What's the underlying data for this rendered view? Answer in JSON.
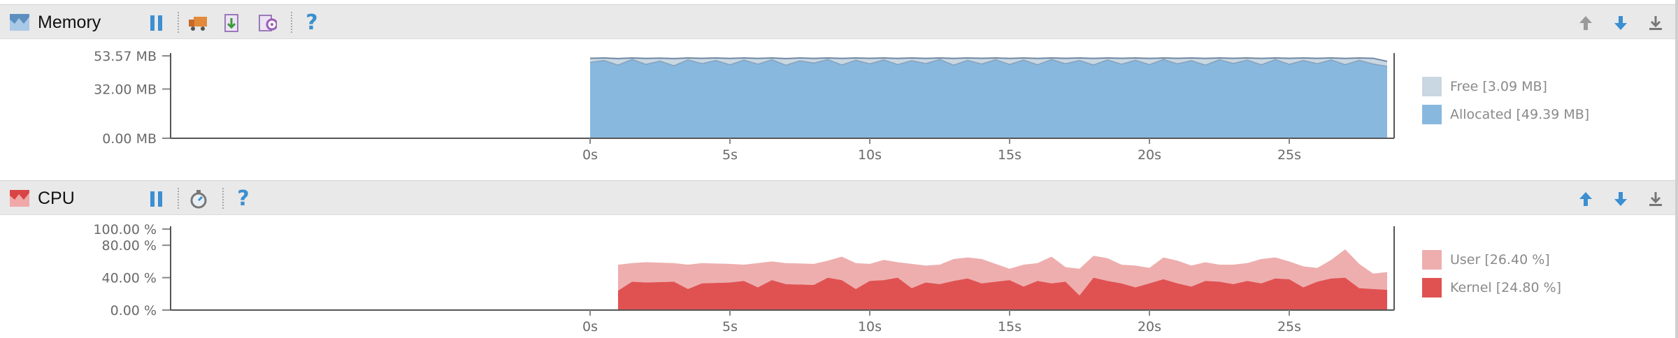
{
  "memory": {
    "title": "Memory",
    "y_ticks": [
      "53.57 MB",
      "32.00 MB",
      "0.00 MB"
    ],
    "x_ticks": [
      "0s",
      "5s",
      "10s",
      "15s",
      "20s",
      "25s"
    ],
    "legend": [
      {
        "label": "Free [3.09 MB]",
        "color": "#c9d7e2"
      },
      {
        "label": "Allocated [49.39 MB]",
        "color": "#89b8de"
      }
    ],
    "colors": {
      "allocated": "#89b8de",
      "free": "#c9d7e2",
      "line": "#6f88a3"
    }
  },
  "cpu": {
    "title": "CPU",
    "y_ticks": [
      "100.00 %",
      "80.00 %",
      "40.00 %",
      "0.00 %"
    ],
    "x_ticks": [
      "0s",
      "5s",
      "10s",
      "15s",
      "20s",
      "25s"
    ],
    "legend": [
      {
        "label": "User [26.40 %]",
        "color": "#eeaeae"
      },
      {
        "label": "Kernel [24.80 %]",
        "color": "#e05252"
      }
    ],
    "colors": {
      "user": "#eeaeae",
      "kernel": "#e05252"
    }
  },
  "icons": {
    "memory_panel": "memory-chart-icon",
    "cpu_panel": "cpu-chart-icon",
    "pause": "pause-icon",
    "gc": "garbage-truck-icon",
    "dump_heap": "dump-heap-icon",
    "allocation_tracking": "allocation-tracking-icon",
    "method_trace": "stopwatch-icon",
    "help": "?",
    "move_up": "arrow-up-icon",
    "move_down": "arrow-down-icon",
    "minimize": "minimize-icon"
  },
  "chart_data": [
    {
      "type": "area",
      "title": "Memory",
      "ylabel": "",
      "xlabel": "",
      "x_unit": "s",
      "ylim": [
        0,
        53.57
      ],
      "xlim": [
        0,
        28.7
      ],
      "series": [
        {
          "name": "Allocated",
          "x": [
            0,
            0.5,
            1,
            1.5,
            2,
            2.5,
            3,
            3.5,
            4,
            4.5,
            5,
            5.5,
            6,
            6.5,
            7,
            7.5,
            8,
            8.5,
            9,
            9.5,
            10,
            10.5,
            11,
            11.5,
            12,
            12.5,
            13,
            13.5,
            14,
            14.5,
            15,
            15.5,
            16,
            16.5,
            17,
            17.5,
            18,
            18.5,
            19,
            19.5,
            20,
            20.5,
            21,
            21.5,
            22,
            22.5,
            23,
            23.5,
            24,
            24.5,
            25,
            25.5,
            26,
            26.5,
            27,
            27.5,
            28,
            28.5
          ],
          "values": [
            49.4,
            50.6,
            47.6,
            51.3,
            48.1,
            50.2,
            47.2,
            51.0,
            48.6,
            50.6,
            47.8,
            50.9,
            48.2,
            51.1,
            47.5,
            50.4,
            48.9,
            51.2,
            47.7,
            50.8,
            48.4,
            51.0,
            47.9,
            50.5,
            48.6,
            51.3,
            47.6,
            50.7,
            48.3,
            51.1,
            48.0,
            50.9,
            47.8,
            51.2,
            48.5,
            50.6,
            47.7,
            51.0,
            48.2,
            50.8,
            47.9,
            51.3,
            48.4,
            50.5,
            47.6,
            51.1,
            48.7,
            50.9,
            47.8,
            51.2,
            48.1,
            50.6,
            48.5,
            51.0,
            47.9,
            50.7,
            48.3,
            46.8
          ]
        },
        {
          "name": "Free",
          "x": [
            0,
            0.5,
            1,
            1.5,
            2,
            2.5,
            3,
            3.5,
            4,
            4.5,
            5,
            5.5,
            6,
            6.5,
            7,
            7.5,
            8,
            8.5,
            9,
            9.5,
            10,
            10.5,
            11,
            11.5,
            12,
            12.5,
            13,
            13.5,
            14,
            14.5,
            15,
            15.5,
            16,
            16.5,
            17,
            17.5,
            18,
            18.5,
            19,
            19.5,
            20,
            20.5,
            21,
            21.5,
            22,
            22.5,
            23,
            23.5,
            24,
            24.5,
            25,
            25.5,
            26,
            26.5,
            27,
            27.5,
            28,
            28.5
          ],
          "values": [
            2.6,
            1.6,
            4.2,
            0.9,
            3.8,
            1.9,
            4.6,
            1.2,
            3.4,
            1.6,
            4.1,
            1.3,
            3.7,
            1.1,
            4.3,
            1.8,
            3.0,
            1.0,
            4.2,
            1.4,
            3.6,
            1.2,
            4.0,
            1.7,
            3.3,
            0.9,
            4.3,
            1.5,
            3.7,
            1.1,
            3.9,
            1.3,
            4.1,
            1.0,
            3.5,
            1.6,
            4.2,
            1.2,
            3.8,
            1.4,
            4.0,
            0.9,
            3.6,
            1.7,
            4.3,
            1.1,
            3.3,
            1.3,
            4.1,
            1.0,
            3.9,
            1.6,
            3.5,
            1.2,
            4.0,
            1.5,
            3.7,
            3.2
          ]
        }
      ]
    },
    {
      "type": "area",
      "title": "CPU",
      "ylabel": "",
      "xlabel": "",
      "x_unit": "s",
      "ylim": [
        0,
        100
      ],
      "xlim": [
        0,
        28.7
      ],
      "series": [
        {
          "name": "Kernel",
          "x": [
            1,
            1.5,
            2,
            3,
            3.5,
            4,
            5,
            5.5,
            6,
            6.5,
            7,
            8,
            8.5,
            9,
            9.5,
            10,
            10.5,
            11,
            11.5,
            12,
            12.5,
            13,
            13.5,
            14,
            15,
            15.5,
            16,
            16.5,
            17,
            17.5,
            18,
            18.5,
            19,
            19.5,
            20,
            20.5,
            21,
            21.5,
            22,
            22.5,
            23,
            23.5,
            24,
            24.5,
            25,
            25.5,
            26,
            26.5,
            27,
            27.5,
            28,
            28.5
          ],
          "values": [
            24,
            35,
            34,
            35,
            26,
            33,
            34,
            36,
            28,
            37,
            32,
            31,
            40,
            37,
            26,
            36,
            37,
            40,
            27,
            34,
            32,
            36,
            39,
            33,
            37,
            29,
            36,
            33,
            35,
            18,
            40,
            36,
            33,
            28,
            33,
            38,
            33,
            29,
            36,
            35,
            32,
            36,
            33,
            39,
            38,
            28,
            35,
            39,
            40,
            27,
            26,
            25
          ]
        },
        {
          "name": "User",
          "x": [
            1,
            1.5,
            2,
            3,
            3.5,
            4,
            5,
            5.5,
            6,
            6.5,
            7,
            8,
            8.5,
            9,
            9.5,
            10,
            10.5,
            11,
            11.5,
            12,
            12.5,
            13,
            13.5,
            14,
            15,
            15.5,
            16,
            16.5,
            17,
            17.5,
            18,
            18.5,
            19,
            19.5,
            20,
            20.5,
            21,
            21.5,
            22,
            22.5,
            23,
            23.5,
            24,
            24.5,
            25,
            25.5,
            26,
            26.5,
            27,
            27.5,
            28,
            28.5
          ],
          "values": [
            32,
            23,
            25,
            23,
            30,
            25,
            23,
            20,
            30,
            23,
            26,
            26,
            21,
            29,
            32,
            21,
            25,
            19,
            30,
            21,
            24,
            27,
            26,
            30,
            14,
            27,
            22,
            33,
            18,
            33,
            27,
            28,
            23,
            27,
            19,
            27,
            28,
            26,
            23,
            21,
            24,
            22,
            30,
            26,
            22,
            26,
            17,
            23,
            35,
            30,
            19,
            22
          ]
        }
      ]
    }
  ]
}
